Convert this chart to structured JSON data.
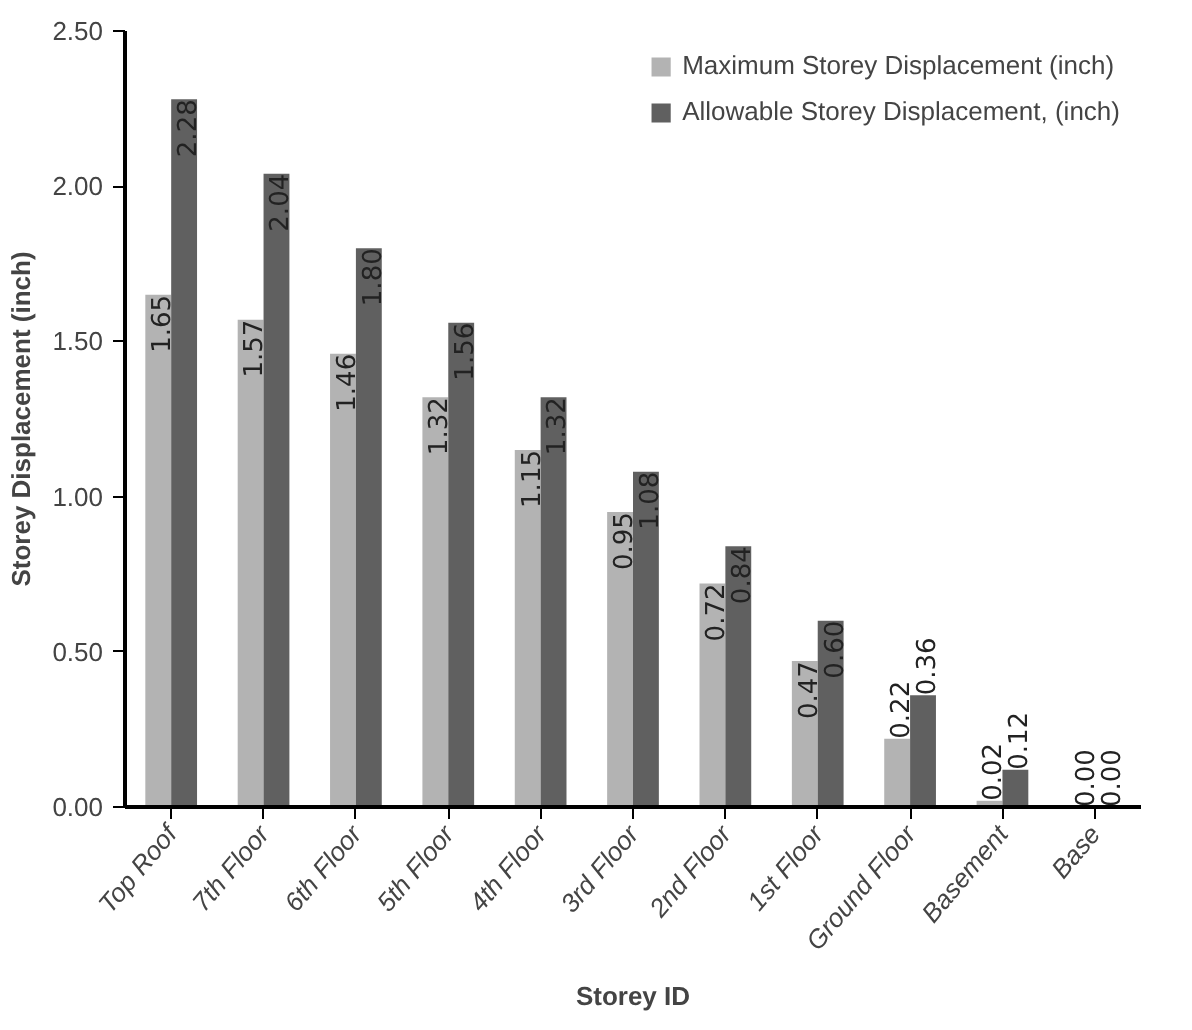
{
  "chart_data": {
    "type": "bar",
    "xlabel": "Storey ID",
    "ylabel": "Storey Displacement (inch)",
    "categories": [
      "Top Roof",
      "7th Floor",
      "6th Floor",
      "5th Floor",
      "4th Floor",
      "3rd Floor",
      "2nd Floor",
      "1st Floor",
      "Ground Floor",
      "Basement",
      "Base"
    ],
    "series": [
      {
        "name": "Maximum Storey Displacement (inch)",
        "color": "#b3b3b3",
        "values": [
          1.65,
          1.57,
          1.46,
          1.32,
          1.15,
          0.95,
          0.72,
          0.47,
          0.22,
          0.02,
          0.0
        ],
        "value_labels": [
          "1.65",
          "1.57",
          "1.46",
          "1.32",
          "1.15",
          "0.95",
          "0.72",
          "0.47",
          "0.22",
          "0.02",
          "0.00"
        ]
      },
      {
        "name": "Allowable Storey Displacement, (inch)",
        "color": "#606060",
        "values": [
          2.28,
          2.04,
          1.8,
          1.56,
          1.32,
          1.08,
          0.84,
          0.6,
          0.36,
          0.12,
          0.0
        ],
        "value_labels": [
          "2.28",
          "2.04",
          "1.80",
          "1.56",
          "1.32",
          "1.08",
          "0.84",
          "0.60",
          "0.36",
          "0.12",
          "0.00"
        ]
      }
    ],
    "ylim": [
      0,
      2.5
    ],
    "yticks": [
      {
        "value": 0,
        "label": "0.00"
      },
      {
        "value": 0.5,
        "label": "0.50"
      },
      {
        "value": 1,
        "label": "1.00"
      },
      {
        "value": 1.5,
        "label": "1.50"
      },
      {
        "value": 2,
        "label": "2.00"
      },
      {
        "value": 2.5,
        "label": "2.50"
      }
    ],
    "grid": false,
    "legend": "top right"
  }
}
